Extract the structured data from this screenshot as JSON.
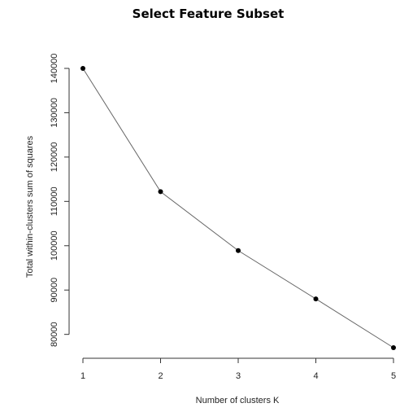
{
  "chart_data": {
    "type": "line",
    "title": "Select Feature Subset",
    "xlabel": "Number of clusters K",
    "ylabel": "Total within-clusters sum of squares",
    "x": [
      1,
      2,
      3,
      4,
      5
    ],
    "x_ticks": [
      "1",
      "2",
      "3",
      "4",
      "5"
    ],
    "y_ticks": [
      "80000",
      "90000",
      "100000",
      "110000",
      "120000",
      "130000",
      "140000"
    ],
    "ylim": [
      77000,
      140000
    ],
    "grid": false,
    "series": [
      {
        "values": [
          140000,
          112200,
          98900,
          88000,
          77000
        ],
        "color": "#666666",
        "marker_color": "#000000"
      }
    ]
  }
}
